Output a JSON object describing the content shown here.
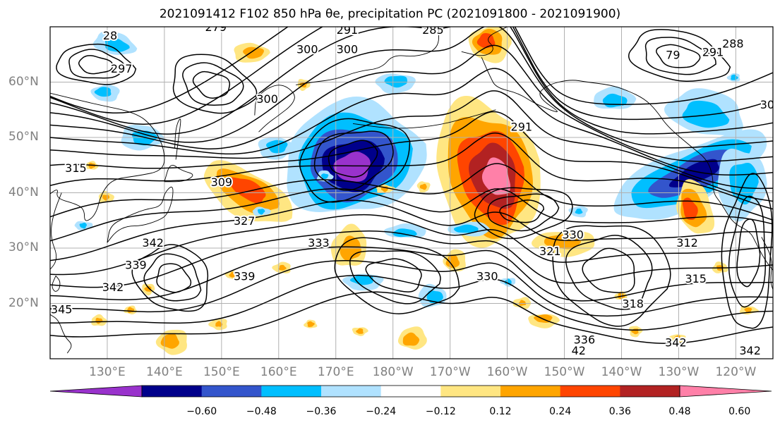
{
  "title": "2021091412 F102 850 hPa θe, precipitation PC (2021091800 - 2021091900)",
  "lat_ticks": [
    {
      "label": "60°N",
      "lat": 60
    },
    {
      "label": "50°N",
      "lat": 50
    },
    {
      "label": "40°N",
      "lat": 40
    },
    {
      "label": "30°N",
      "lat": 30
    },
    {
      "label": "20°N",
      "lat": 20
    }
  ],
  "lon_ticks": [
    {
      "label": "130°E",
      "lon": 130
    },
    {
      "label": "140°E",
      "lon": 140
    },
    {
      "label": "150°E",
      "lon": 150
    },
    {
      "label": "160°E",
      "lon": 160
    },
    {
      "label": "170°E",
      "lon": 170
    },
    {
      "label": "180°W",
      "lon": 180
    },
    {
      "label": "170°W",
      "lon": 190
    },
    {
      "label": "160°W",
      "lon": 200
    },
    {
      "label": "150°W",
      "lon": 210
    },
    {
      "label": "140°W",
      "lon": 220
    },
    {
      "label": "130°W",
      "lon": 230
    },
    {
      "label": "120°W",
      "lon": 240
    }
  ],
  "colorbar": {
    "colors": [
      "#9932cc",
      "#00008b",
      "#3355cc",
      "#00bfff",
      "#b0e2ff",
      "#ffffff",
      "#ffe682",
      "#ffa500",
      "#ff4500",
      "#b22222",
      "#ff80a8"
    ],
    "labels": [
      "−0.60",
      "−0.48",
      "−0.36",
      "−0.24",
      "−0.12",
      "0.12",
      "0.24",
      "0.36",
      "0.48",
      "0.60"
    ]
  },
  "contour_labels": [
    {
      "text": "28",
      "lon": 130.5,
      "lat": 68.5
    },
    {
      "text": "279",
      "lon": 149,
      "lat": 70
    },
    {
      "text": "291",
      "lon": 172,
      "lat": 69.5
    },
    {
      "text": "285",
      "lon": 187,
      "lat": 69.5
    },
    {
      "text": "300",
      "lon": 165,
      "lat": 66
    },
    {
      "text": "300",
      "lon": 172,
      "lat": 66
    },
    {
      "text": "297",
      "lon": 132.5,
      "lat": 62.5
    },
    {
      "text": "300",
      "lon": 158,
      "lat": 57
    },
    {
      "text": "291",
      "lon": 202.5,
      "lat": 52
    },
    {
      "text": "79",
      "lon": 229,
      "lat": 65
    },
    {
      "text": "291",
      "lon": 236,
      "lat": 65.5
    },
    {
      "text": "288",
      "lon": 239.5,
      "lat": 67
    },
    {
      "text": "30",
      "lon": 245.5,
      "lat": 56
    },
    {
      "text": "315",
      "lon": 124.5,
      "lat": 44.5
    },
    {
      "text": "309",
      "lon": 150,
      "lat": 42
    },
    {
      "text": "327",
      "lon": 154,
      "lat": 35
    },
    {
      "text": "342",
      "lon": 138,
      "lat": 31
    },
    {
      "text": "339",
      "lon": 135,
      "lat": 27
    },
    {
      "text": "333",
      "lon": 167,
      "lat": 31
    },
    {
      "text": "330",
      "lon": 211.5,
      "lat": 32.5
    },
    {
      "text": "321",
      "lon": 207.5,
      "lat": 29.5
    },
    {
      "text": "330",
      "lon": 196.5,
      "lat": 25
    },
    {
      "text": "339",
      "lon": 154,
      "lat": 25
    },
    {
      "text": "342",
      "lon": 131,
      "lat": 23
    },
    {
      "text": "345",
      "lon": 122,
      "lat": 19
    },
    {
      "text": "312",
      "lon": 231.5,
      "lat": 31
    },
    {
      "text": "315",
      "lon": 233,
      "lat": 24.5
    },
    {
      "text": "318",
      "lon": 222,
      "lat": 20
    },
    {
      "text": "336",
      "lon": 213.5,
      "lat": 13.5
    },
    {
      "text": "342",
      "lon": 229.5,
      "lat": 13
    },
    {
      "text": "42",
      "lon": 212.5,
      "lat": 11.5
    },
    {
      "text": "342",
      "lon": 242.5,
      "lat": 11.5
    }
  ],
  "colors": {
    "contour": "#000000",
    "grid": "#b0b0b0",
    "tick_label": "#808080",
    "title": "#000000"
  }
}
